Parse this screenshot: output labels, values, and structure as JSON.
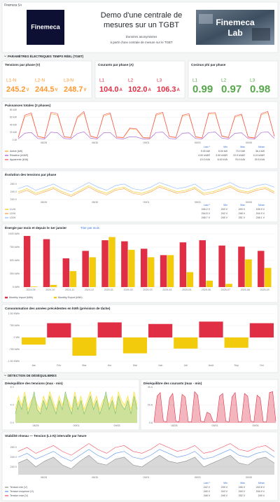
{
  "header": {
    "org": "Finemeca SA",
    "logo": "Finemeca",
    "title_lines": [
      "Demo d'une centrale de",
      "mesures sur un TGBT"
    ],
    "subtitle_lines": [
      "Données anonymisées",
      "à partir d'une centrale de mesure sur le TGBT"
    ],
    "lab_lines": [
      "Finemeca",
      "Lab"
    ]
  },
  "sections": [
    "PARAMÈTRES ÉLECTRIQUES TEMPS RÉEL (TGBT)",
    "DÉTECTION DE DÉSÉQUILIBRES"
  ],
  "stats": [
    {
      "title": "Tensions par phase (V)",
      "color": "#ff9830",
      "unit": "V",
      "items": [
        {
          "name": "L1-N",
          "value": 245.2
        },
        {
          "name": "L2-N",
          "value": 244.5
        },
        {
          "name": "L3-N",
          "value": 248.7
        }
      ]
    },
    {
      "title": "Courants par phase (A)",
      "color": "#e02f44",
      "unit": "A",
      "items": [
        {
          "name": "L1",
          "value": 104,
          "value_label": "104.0"
        },
        {
          "name": "L2",
          "value": 102,
          "value_label": "102.0"
        },
        {
          "name": "L3",
          "value": 106.3
        }
      ]
    },
    {
      "title": "Cosinus phi par phase",
      "color": "#56a64b",
      "items": [
        {
          "name": "L1",
          "value": 0.99
        },
        {
          "name": "L2",
          "value": 0.97
        },
        {
          "name": "L3",
          "value": 0.98
        }
      ]
    }
  ],
  "charts": [
    {
      "type": "line",
      "title": "Puissances totales (3 phases)",
      "ylim": [
        0,
        80
      ],
      "yticks": [
        {
          "value": 0,
          "label": "0 W"
        },
        {
          "value": 20,
          "label": "20 kW"
        },
        {
          "value": 40,
          "label": "40 kW"
        },
        {
          "value": 60,
          "label": "60 kW"
        },
        {
          "value": 80,
          "label": "80 kW"
        }
      ],
      "xlabels": [
        "08/28",
        "08/30",
        "09/01",
        "09/03",
        "09/05"
      ],
      "series": [
        {
          "name": "Active (kW)",
          "color": "#ff9830",
          "values": [
            6,
            62,
            68,
            9,
            5,
            70,
            66,
            8,
            6,
            58,
            72,
            10,
            5,
            64,
            69,
            7,
            6,
            30,
            28,
            6,
            5,
            66,
            71,
            9,
            6,
            63,
            67,
            8,
            5,
            69,
            70,
            10,
            6,
            61,
            66,
            7,
            5,
            67,
            73,
            9
          ]
        },
        {
          "name": "Réactive (kVAR)",
          "color": "#a352cc",
          "values": [
            3,
            18,
            20,
            4,
            3,
            21,
            19,
            4,
            3,
            17,
            22,
            5,
            3,
            19,
            20,
            4,
            3,
            9,
            8,
            3,
            3,
            20,
            21,
            4,
            3,
            18,
            19,
            4,
            3,
            20,
            21,
            5,
            3,
            18,
            19,
            4,
            3,
            20,
            22,
            4
          ]
        },
        {
          "name": "Apparente (kVA)",
          "color": "#f2495c",
          "values": [
            7,
            66,
            72,
            10,
            6,
            74,
            70,
            9,
            7,
            61,
            76,
            11,
            6,
            67,
            72,
            8,
            7,
            32,
            30,
            7,
            6,
            69,
            74,
            10,
            7,
            66,
            70,
            9,
            6,
            72,
            73,
            11,
            7,
            64,
            69,
            8,
            6,
            70,
            76,
            10
          ]
        }
      ],
      "legend": {
        "columns": [
          "Last *",
          "Min",
          "Max",
          "Mean"
        ],
        "rows": [
          [
            "9.00 kW",
            "5.00 kW",
            "73.0 kW",
            "36.4 kW"
          ],
          [
            "4.00 kVAR",
            "3.00 kVAR",
            "22.0 kVAR",
            "11.5 kVAR"
          ],
          [
            "10.0 kVA",
            "6.00 kVA",
            "76.0 kVA",
            "39.5 kVA"
          ]
        ]
      }
    },
    {
      "type": "line",
      "title": "Évolution des tensions par phase",
      "ylim": [
        240,
        254
      ],
      "yticks": [
        {
          "value": 240,
          "label": "240 V"
        },
        {
          "value": 245,
          "label": "245 V"
        },
        {
          "value": 250,
          "label": "250 V"
        }
      ],
      "xlabels": [
        "08/28",
        "08/30",
        "09/01",
        "09/03",
        "09/05"
      ],
      "series": [
        {
          "name": "L1-N",
          "color": "#f2cc0c",
          "values": [
            245,
            247,
            244,
            246,
            248,
            245,
            243,
            246,
            249,
            246,
            244,
            247,
            248,
            245,
            244,
            246,
            249,
            247,
            245,
            246,
            248,
            244,
            245,
            247,
            249,
            246,
            245,
            247,
            248,
            245
          ]
        },
        {
          "name": "L2-N",
          "color": "#ff9830",
          "values": [
            244,
            246,
            243,
            245,
            247,
            244,
            242,
            245,
            248,
            245,
            243,
            246,
            247,
            244,
            243,
            245,
            248,
            246,
            244,
            245,
            247,
            243,
            244,
            246,
            248,
            245,
            244,
            246,
            247,
            244
          ]
        },
        {
          "name": "L3-N",
          "color": "#8ab8ff",
          "values": [
            247,
            249,
            246,
            248,
            250,
            247,
            245,
            248,
            251,
            248,
            246,
            249,
            250,
            247,
            246,
            248,
            251,
            249,
            247,
            248,
            250,
            246,
            247,
            249,
            251,
            248,
            247,
            249,
            250,
            248
          ]
        }
      ],
      "legend": {
        "columns": [
          "Last *",
          "Min",
          "Max",
          "Mean"
        ],
        "rows": [
          [
            "245.2 V",
            "243 V",
            "249 V",
            "245.9 V"
          ],
          [
            "244.5 V",
            "242 V",
            "248 V",
            "244.9 V"
          ],
          [
            "248.7 V",
            "245 V",
            "251 V",
            "248.1 V"
          ]
        ]
      }
    },
    {
      "type": "bar",
      "title": "Énergie par mois et depuis le 1er janvier",
      "link": "Trier par mois",
      "ylim": [
        0,
        1000
      ],
      "yticks": [
        {
          "value": 0,
          "label": "0 kWh"
        },
        {
          "value": 250,
          "label": "250 kWh"
        },
        {
          "value": 500,
          "label": "500 kWh"
        },
        {
          "value": 750,
          "label": "750 kWh"
        },
        {
          "value": 1000,
          "label": "1000 kWh"
        }
      ],
      "categories": [
        "2024-09",
        "2024-10",
        "2024-11",
        "2024-12",
        "2025-01",
        "2025-02",
        "2025-03",
        "2025-04",
        "2025-05",
        "2025-06",
        "2025-07",
        "2025-08",
        "2025-09"
      ],
      "series": [
        {
          "name": "Monthly Import (kWh)",
          "color": "#e02f44",
          "values": [
            960,
            900,
            540,
            680,
            880,
            860,
            720,
            600,
            840,
            880,
            780,
            760,
            680
          ]
        },
        {
          "name": "Monthly Export (kWh)",
          "color": "#f2cc0c",
          "values": [
            10,
            40,
            300,
            560,
            940,
            700,
            560,
            600,
            280,
            120,
            60,
            520,
            360
          ]
        }
      ]
    },
    {
      "type": "signed_bar",
      "title": "Consommation des années précédentes en kWh (prévision de tâche)",
      "ylim": [
        -1500,
        1500
      ],
      "yticks": [
        {
          "value": -1500,
          "label": "-1.50 MWh"
        },
        {
          "value": -750,
          "label": "-750 kWh"
        },
        {
          "value": 0,
          "label": "0 Wh"
        },
        {
          "value": 750,
          "label": "750 kWh"
        },
        {
          "value": 1500,
          "label": "1.50 MWh"
        }
      ],
      "categories": [
        "Jan",
        "Fév",
        "Mar",
        "Avr",
        "Mai",
        "Juin",
        "Juil",
        "Août",
        "Sep",
        "Oct"
      ],
      "values": [
        -450,
        900,
        -1150,
        950,
        -1000,
        850,
        -700,
        1000,
        -650,
        900
      ],
      "pos_color": "#e02f44",
      "neg_color": "#f2cc0c"
    },
    {
      "type": "line",
      "title": "Déséquilibre des tensions (max - min)",
      "ylim": [
        0,
        8
      ],
      "yticks": [
        {
          "value": 0,
          "label": "0 V"
        },
        {
          "value": 4,
          "label": "4 V"
        },
        {
          "value": 8,
          "label": "8 V"
        }
      ],
      "xlabels": [
        "08/28",
        "09/01",
        "09/05"
      ],
      "series": [
        {
          "color": "#fade2a",
          "fill": true,
          "values": [
            3,
            6,
            4,
            7,
            3,
            5,
            6,
            4,
            3,
            6,
            4,
            7,
            5,
            3,
            6,
            4,
            6,
            5,
            3,
            7,
            4,
            6,
            3,
            5,
            7,
            4,
            6,
            3,
            5,
            6,
            4,
            6,
            3,
            7,
            5,
            4,
            6,
            3,
            7,
            4
          ]
        },
        {
          "color": "#73bf69",
          "fill": true,
          "values": [
            2,
            5,
            3,
            6,
            2,
            4,
            7,
            3,
            2,
            5,
            3,
            6,
            4,
            2,
            5,
            3,
            7,
            4,
            2,
            6,
            3,
            5,
            2,
            4,
            6,
            3,
            5,
            2,
            4,
            7,
            3,
            5,
            2,
            6,
            4,
            3,
            5,
            2,
            6,
            3
          ]
        }
      ]
    },
    {
      "type": "line",
      "title": "Déséquilibre des courants (max - min)",
      "ylim": [
        0,
        40
      ],
      "yticks": [
        {
          "value": 0,
          "label": "0 A"
        },
        {
          "value": 20,
          "label": "20 A"
        },
        {
          "value": 40,
          "label": "40 A"
        }
      ],
      "xlabels": [
        "08/28",
        "09/01",
        "09/05"
      ],
      "series": [
        {
          "color": "#e02f44",
          "fill": true,
          "values": [
            1,
            30,
            34,
            2,
            1,
            28,
            33,
            2,
            1,
            32,
            29,
            1,
            1,
            35,
            31,
            2,
            1,
            12,
            10,
            1,
            1,
            30,
            33,
            2,
            1,
            29,
            34,
            1,
            1,
            33,
            30,
            2,
            1,
            31,
            28,
            1,
            1,
            34,
            35,
            2
          ]
        }
      ]
    },
    {
      "type": "line",
      "title": "Stabilité réseau — Tension (L1-N) intervalle par heure",
      "ylim": [
        236,
        254
      ],
      "yticks": [
        {
          "value": 240,
          "label": "240 V"
        },
        {
          "value": 245,
          "label": "245 V"
        },
        {
          "value": 250,
          "label": "250 V"
        }
      ],
      "xlabels": [
        "08/28",
        "08/30",
        "09/01",
        "09/03",
        "09/05"
      ],
      "series": [
        {
          "name": "Tension min (V)",
          "color": "#8e8e8e",
          "fill": true,
          "values": [
            242,
            244,
            240,
            243,
            245,
            241,
            239,
            243,
            246,
            242,
            241,
            244,
            245,
            241,
            240,
            243,
            246,
            243,
            242,
            243,
            245,
            240,
            242,
            244,
            246,
            242,
            241,
            244,
            245,
            242
          ]
        },
        {
          "name": "Tension moyenne (V)",
          "color": "#5794f2",
          "values": [
            245,
            247,
            244,
            246,
            248,
            245,
            243,
            246,
            249,
            246,
            244,
            247,
            248,
            245,
            244,
            246,
            249,
            247,
            245,
            246,
            248,
            244,
            245,
            247,
            249,
            246,
            245,
            247,
            248,
            245
          ]
        },
        {
          "name": "Tension max (V)",
          "color": "#f2495c",
          "values": [
            248,
            250,
            247,
            249,
            251,
            248,
            246,
            249,
            252,
            249,
            247,
            250,
            251,
            248,
            247,
            249,
            252,
            250,
            248,
            249,
            251,
            247,
            248,
            250,
            252,
            249,
            248,
            250,
            251,
            248
          ]
        }
      ],
      "legend": {
        "columns": [
          "Last *",
          "Min",
          "Max",
          "Mean"
        ],
        "rows": [
          [
            "242 V",
            "239 V",
            "246 V",
            "242.8 V"
          ],
          [
            "245 V",
            "243 V",
            "249 V",
            "245.9 V"
          ],
          [
            "248 V",
            "246 V",
            "252 V",
            "249 V"
          ]
        ]
      }
    }
  ]
}
